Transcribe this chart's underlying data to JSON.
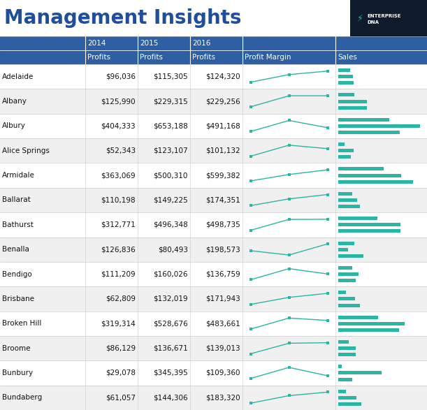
{
  "title": "Management Insights",
  "title_color": "#1f4e9b",
  "title_fontsize": 20,
  "header_bg": "#2e5fa3",
  "header_text_color": "#ffffff",
  "grid_color": "#cccccc",
  "teal": "#2ab5a5",
  "dark_navy": "#0d1b2a",
  "rows": [
    {
      "city": "Adelaide",
      "p2014": 96036,
      "p2015": 115305,
      "p2016": 124320
    },
    {
      "city": "Albany",
      "p2014": 125990,
      "p2015": 229315,
      "p2016": 229256
    },
    {
      "city": "Albury",
      "p2014": 404333,
      "p2015": 653188,
      "p2016": 491168
    },
    {
      "city": "Alice Springs",
      "p2014": 52343,
      "p2015": 123107,
      "p2016": 101132
    },
    {
      "city": "Armidale",
      "p2014": 363069,
      "p2015": 500310,
      "p2016": 599382
    },
    {
      "city": "Ballarat",
      "p2014": 110198,
      "p2015": 149225,
      "p2016": 174351
    },
    {
      "city": "Bathurst",
      "p2014": 312771,
      "p2015": 496348,
      "p2016": 498735
    },
    {
      "city": "Benalla",
      "p2014": 126836,
      "p2015": 80493,
      "p2016": 198573
    },
    {
      "city": "Bendigo",
      "p2014": 111209,
      "p2015": 160026,
      "p2016": 136759
    },
    {
      "city": "Brisbane",
      "p2014": 62809,
      "p2015": 132019,
      "p2016": 171943
    },
    {
      "city": "Broken Hill",
      "p2014": 319314,
      "p2015": 528676,
      "p2016": 483661
    },
    {
      "city": "Broome",
      "p2014": 86129,
      "p2015": 136671,
      "p2016": 139013
    },
    {
      "city": "Bunbury",
      "p2014": 29078,
      "p2015": 345395,
      "p2016": 109360
    },
    {
      "city": "Bundaberg",
      "p2014": 61057,
      "p2015": 144306,
      "p2016": 183320
    }
  ],
  "fig_width": 6.11,
  "fig_height": 5.87,
  "dpi": 100
}
